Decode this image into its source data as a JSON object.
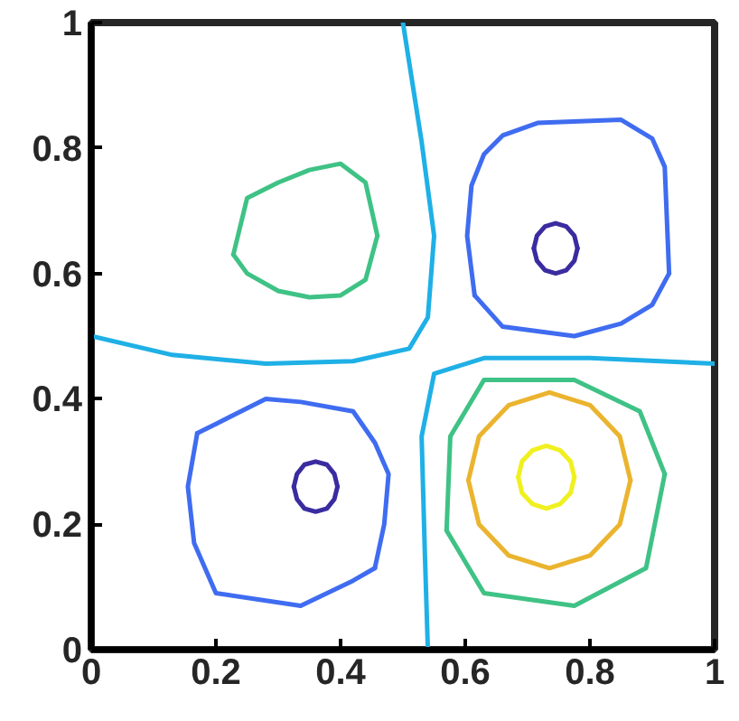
{
  "chart_data": {
    "type": "line",
    "xlim": [
      0,
      1
    ],
    "ylim": [
      0,
      1
    ],
    "xticks": [
      0,
      0.2,
      0.4,
      0.6,
      0.8,
      1
    ],
    "yticks": [
      0,
      0.2,
      0.4,
      0.6,
      0.8,
      1
    ],
    "grid": false,
    "series": [
      {
        "color": "#1fb0e6",
        "x": [
          0,
          0.13,
          0.28,
          0.42,
          0.51,
          0.54,
          0.55,
          0.53,
          0.5
        ],
        "values": [
          0.5,
          0.47,
          0.456,
          0.46,
          0.48,
          0.53,
          0.66,
          0.81,
          1
        ]
      },
      {
        "color": "#1fb0e6",
        "x": [
          0.54,
          0.535,
          0.53,
          0.55,
          0.63,
          0.8,
          1
        ],
        "values": [
          0,
          0.16,
          0.34,
          0.44,
          0.465,
          0.465,
          0.456
        ]
      },
      {
        "color": "#3fc285",
        "x": [
          0.228,
          0.25,
          0.3,
          0.35,
          0.4,
          0.44,
          0.459
        ],
        "values": [
          0.63,
          0.72,
          0.745,
          0.765,
          0.775,
          0.745,
          0.66
        ]
      },
      {
        "color": "#3fc285",
        "x": [
          0.228,
          0.25,
          0.3,
          0.35,
          0.4,
          0.44,
          0.459
        ],
        "values": [
          0.63,
          0.6,
          0.572,
          0.562,
          0.565,
          0.59,
          0.66
        ]
      },
      {
        "color": "#3fc285",
        "x": [
          0.57,
          0.576,
          0.63,
          0.775,
          0.88,
          0.92
        ],
        "values": [
          0.19,
          0.34,
          0.43,
          0.43,
          0.38,
          0.28
        ]
      },
      {
        "color": "#3fc285",
        "x": [
          0.57,
          0.63,
          0.775,
          0.89,
          0.92
        ],
        "values": [
          0.19,
          0.09,
          0.07,
          0.13,
          0.28
        ]
      },
      {
        "color": "#3f6cf0",
        "x": [
          0.615,
          0.603,
          0.61,
          0.63,
          0.66,
          0.716,
          0.85,
          0.9,
          0.92,
          0.927
        ],
        "values": [
          0.565,
          0.66,
          0.74,
          0.79,
          0.82,
          0.84,
          0.845,
          0.815,
          0.77,
          0.6
        ]
      },
      {
        "color": "#3f6cf0",
        "x": [
          0.615,
          0.66,
          0.775,
          0.85,
          0.9,
          0.927
        ],
        "values": [
          0.565,
          0.515,
          0.5,
          0.52,
          0.55,
          0.6
        ]
      },
      {
        "color": "#3f6cf0",
        "x": [
          0.17,
          0.2,
          0.28,
          0.336,
          0.42,
          0.455,
          0.477,
          0.47,
          0.455
        ],
        "values": [
          0.345,
          0.36,
          0.4,
          0.395,
          0.38,
          0.33,
          0.28,
          0.2,
          0.13
        ]
      },
      {
        "color": "#3f6cf0",
        "x": [
          0.455,
          0.42,
          0.336,
          0.2,
          0.165,
          0.155,
          0.17
        ],
        "values": [
          0.13,
          0.11,
          0.07,
          0.09,
          0.17,
          0.26,
          0.345
        ]
      },
      {
        "color": "#3a2ca0",
        "x": [
          0.325,
          0.33,
          0.342,
          0.36,
          0.378,
          0.39,
          0.395
        ],
        "values": [
          0.26,
          0.28,
          0.295,
          0.3,
          0.295,
          0.28,
          0.26
        ]
      },
      {
        "color": "#3a2ca0",
        "x": [
          0.325,
          0.33,
          0.342,
          0.36,
          0.378,
          0.39,
          0.395
        ],
        "values": [
          0.26,
          0.24,
          0.225,
          0.22,
          0.225,
          0.24,
          0.26
        ]
      },
      {
        "color": "#3a2ca0",
        "x": [
          0.71,
          0.715,
          0.728,
          0.745,
          0.762,
          0.775,
          0.78
        ],
        "values": [
          0.64,
          0.66,
          0.675,
          0.68,
          0.675,
          0.66,
          0.64
        ]
      },
      {
        "color": "#3a2ca0",
        "x": [
          0.71,
          0.715,
          0.728,
          0.745,
          0.762,
          0.775,
          0.78
        ],
        "values": [
          0.64,
          0.62,
          0.605,
          0.6,
          0.605,
          0.62,
          0.64
        ]
      },
      {
        "color": "#ebb42f",
        "x": [
          0.605,
          0.622,
          0.67,
          0.735,
          0.8,
          0.848,
          0.865
        ],
        "values": [
          0.27,
          0.34,
          0.39,
          0.41,
          0.39,
          0.34,
          0.27
        ]
      },
      {
        "color": "#ebb42f",
        "x": [
          0.605,
          0.622,
          0.67,
          0.735,
          0.8,
          0.848,
          0.865
        ],
        "values": [
          0.27,
          0.2,
          0.15,
          0.13,
          0.15,
          0.2,
          0.27
        ]
      },
      {
        "color": "#f0f020",
        "x": [
          0.685,
          0.691,
          0.708,
          0.73,
          0.752,
          0.769,
          0.775
        ],
        "values": [
          0.275,
          0.3,
          0.318,
          0.325,
          0.318,
          0.3,
          0.275
        ]
      },
      {
        "color": "#f0f020",
        "x": [
          0.685,
          0.691,
          0.708,
          0.73,
          0.752,
          0.769,
          0.775
        ],
        "values": [
          0.275,
          0.25,
          0.232,
          0.225,
          0.232,
          0.25,
          0.275
        ]
      }
    ]
  }
}
